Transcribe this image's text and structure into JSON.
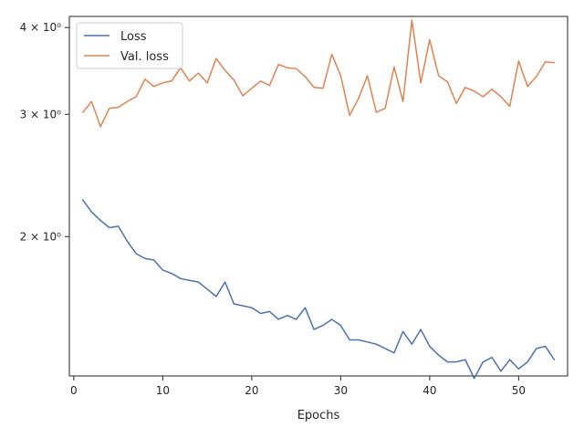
{
  "chart_data": {
    "type": "line",
    "xlabel": "Epochs",
    "ylabel": "",
    "yscale": "log",
    "xlim": [
      -0.5,
      55.5
    ],
    "ylim": [
      1.26,
      4.15
    ],
    "xticks": [
      0,
      10,
      20,
      30,
      40,
      50
    ],
    "ytick_labels": [
      {
        "value": 2,
        "label": "2 × 10⁰"
      },
      {
        "value": 3,
        "label": "3 × 10⁰"
      },
      {
        "value": 4,
        "label": "4 × 10⁰"
      }
    ],
    "grid": false,
    "legend_position": "upper-left",
    "colors": {
      "axis": "#262626",
      "series_0": "#4c72b0",
      "series_1": "#dd8452"
    },
    "x": [
      1,
      2,
      3,
      4,
      5,
      6,
      7,
      8,
      9,
      10,
      11,
      12,
      13,
      14,
      15,
      16,
      17,
      18,
      19,
      20,
      21,
      22,
      23,
      24,
      25,
      26,
      27,
      28,
      29,
      30,
      31,
      32,
      33,
      34,
      35,
      36,
      37,
      38,
      39,
      40,
      41,
      42,
      43,
      44,
      45,
      46,
      47,
      48,
      49,
      50,
      51,
      52,
      53,
      54
    ],
    "series": [
      {
        "name": "Loss",
        "values": [
          2.26,
          2.17,
          2.11,
          2.06,
          2.07,
          1.97,
          1.89,
          1.86,
          1.85,
          1.79,
          1.77,
          1.74,
          1.73,
          1.72,
          1.68,
          1.64,
          1.72,
          1.6,
          1.59,
          1.58,
          1.55,
          1.56,
          1.52,
          1.54,
          1.52,
          1.58,
          1.47,
          1.49,
          1.52,
          1.49,
          1.42,
          1.42,
          1.41,
          1.4,
          1.38,
          1.36,
          1.46,
          1.4,
          1.47,
          1.39,
          1.35,
          1.32,
          1.32,
          1.33,
          1.25,
          1.32,
          1.34,
          1.28,
          1.33,
          1.29,
          1.32,
          1.38,
          1.39,
          1.33
        ]
      },
      {
        "name": "Val. loss",
        "values": [
          3.02,
          3.13,
          2.88,
          3.06,
          3.07,
          3.13,
          3.18,
          3.37,
          3.29,
          3.33,
          3.35,
          3.5,
          3.35,
          3.44,
          3.33,
          3.61,
          3.47,
          3.36,
          3.19,
          3.27,
          3.35,
          3.3,
          3.54,
          3.5,
          3.49,
          3.4,
          3.28,
          3.27,
          3.66,
          3.41,
          2.99,
          3.16,
          3.41,
          3.02,
          3.06,
          3.51,
          3.13,
          4.1,
          3.33,
          3.84,
          3.41,
          3.34,
          3.11,
          3.28,
          3.24,
          3.18,
          3.26,
          3.18,
          3.08,
          3.58,
          3.29,
          3.4,
          3.57,
          3.56
        ]
      }
    ]
  }
}
